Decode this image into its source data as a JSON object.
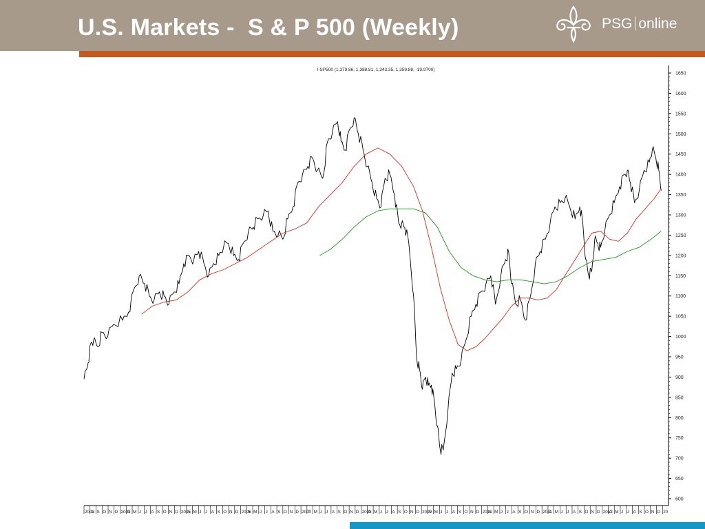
{
  "header": {
    "title": "U.S. Markets -  S & P 500 (Weekly)",
    "logo_text_1": "PSG",
    "logo_text_2": "online",
    "logo_icon": "fleur-de-lis-icon"
  },
  "colors": {
    "header_bg": "#a89a8a",
    "accent_orange": "#c5581c",
    "accent_blue": "#1497c6",
    "price_line": "#000000",
    "ma_red": "#e8281c",
    "ma_green": "#1a9a1a"
  },
  "chart_data": {
    "type": "line",
    "title": "I-SP500 (1,379.86, 1,388.81, 1,343.35, 1,359.88, -19.9700)",
    "ylim": [
      580,
      1670
    ],
    "y_ticks": [
      600,
      650,
      700,
      750,
      800,
      850,
      900,
      950,
      1000,
      1050,
      1100,
      1150,
      1200,
      1250,
      1300,
      1350,
      1400,
      1450,
      1500,
      1550,
      1600,
      1650
    ],
    "y_axis_position": "right",
    "grid": false,
    "x_range": [
      2003.15,
      2012.97
    ],
    "x_tick_labels": [
      "2003",
      "A",
      "S",
      "O",
      "N",
      "D",
      "2004",
      "A",
      "M",
      "J",
      "J",
      "A",
      "S",
      "O",
      "N",
      "D",
      "2005",
      "A",
      "M",
      "J",
      "J",
      "A",
      "S",
      "O",
      "N",
      "D",
      "2006",
      "A",
      "M",
      "J",
      "J",
      "A",
      "S",
      "O",
      "N",
      "D",
      "2007",
      "A",
      "M",
      "J",
      "J",
      "A",
      "S",
      "O",
      "N",
      "D",
      "2008",
      "A",
      "M",
      "J",
      "J",
      "A",
      "S",
      "O",
      "N",
      "D",
      "2009",
      "A",
      "M",
      "J",
      "J",
      "A",
      "S",
      "O",
      "N",
      "D",
      "2010",
      "A",
      "M",
      "J",
      "J",
      "A",
      "S",
      "O",
      "N",
      "D",
      "2011",
      "A",
      "M",
      "J",
      "J",
      "A",
      "S",
      "O",
      "N",
      "D",
      "2012",
      "A",
      "M",
      "J",
      "J",
      "A",
      "S",
      "O",
      "N",
      "D",
      "20"
    ],
    "series": [
      {
        "color": "#000000",
        "x": [
          2003.15,
          2003.22,
          2003.27,
          2003.31,
          2003.38,
          2003.45,
          2003.55,
          2003.65,
          2003.8,
          2003.9,
          2004.0,
          2004.08,
          2004.17,
          2004.25,
          2004.33,
          2004.42,
          2004.5,
          2004.58,
          2004.67,
          2004.75,
          2004.83,
          2004.92,
          2005.0,
          2005.08,
          2005.17,
          2005.25,
          2005.33,
          2005.42,
          2005.5,
          2005.58,
          2005.67,
          2005.75,
          2005.83,
          2005.92,
          2006.0,
          2006.08,
          2006.17,
          2006.25,
          2006.33,
          2006.42,
          2006.5,
          2006.58,
          2006.67,
          2006.75,
          2006.83,
          2006.92,
          2007.0,
          2007.08,
          2007.17,
          2007.25,
          2007.33,
          2007.42,
          2007.48,
          2007.55,
          2007.62,
          2007.7,
          2007.77,
          2007.85,
          2007.92,
          2008.0,
          2008.08,
          2008.15,
          2008.22,
          2008.3,
          2008.38,
          2008.45,
          2008.5,
          2008.55,
          2008.62,
          2008.7,
          2008.75,
          2008.8,
          2008.85,
          2008.9,
          2008.95,
          2009.0,
          2009.05,
          2009.1,
          2009.15,
          2009.2,
          2009.28,
          2009.35,
          2009.42,
          2009.5,
          2009.58,
          2009.67,
          2009.75,
          2009.83,
          2009.92,
          2010.0,
          2010.08,
          2010.17,
          2010.25,
          2010.3,
          2010.35,
          2010.42,
          2010.5,
          2010.58,
          2010.67,
          2010.75,
          2010.83,
          2010.92,
          2011.0,
          2011.08,
          2011.17,
          2011.25,
          2011.33,
          2011.42,
          2011.5,
          2011.55,
          2011.6,
          2011.65,
          2011.7,
          2011.75,
          2011.8,
          2011.85,
          2011.92,
          2012.0,
          2012.08,
          2012.17,
          2012.25,
          2012.3,
          2012.35,
          2012.42,
          2012.5,
          2012.58,
          2012.67,
          2012.72,
          2012.78,
          2012.83,
          2012.87
        ],
        "y": [
          895,
          935,
          985,
          990,
          975,
          1010,
          1000,
          1030,
          1040,
          1060,
          1120,
          1150,
          1130,
          1100,
          1090,
          1110,
          1100,
          1080,
          1110,
          1130,
          1180,
          1200,
          1190,
          1210,
          1180,
          1150,
          1180,
          1200,
          1220,
          1230,
          1200,
          1190,
          1230,
          1260,
          1270,
          1290,
          1300,
          1310,
          1260,
          1250,
          1240,
          1290,
          1320,
          1380,
          1400,
          1420,
          1440,
          1410,
          1390,
          1480,
          1500,
          1530,
          1480,
          1460,
          1510,
          1540,
          1500,
          1460,
          1420,
          1380,
          1340,
          1320,
          1390,
          1400,
          1350,
          1280,
          1280,
          1270,
          1230,
          1100,
          950,
          920,
          870,
          900,
          880,
          880,
          840,
          780,
          720,
          720,
          820,
          910,
          920,
          940,
          990,
          1050,
          1080,
          1110,
          1130,
          1150,
          1080,
          1150,
          1190,
          1210,
          1130,
          1080,
          1090,
          1040,
          1100,
          1180,
          1210,
          1240,
          1280,
          1320,
          1330,
          1340,
          1320,
          1290,
          1320,
          1280,
          1190,
          1150,
          1160,
          1240,
          1230,
          1220,
          1260,
          1300,
          1330,
          1370,
          1400,
          1410,
          1380,
          1330,
          1360,
          1410,
          1430,
          1460,
          1440,
          1410,
          1360
        ]
      },
      {
        "color": "#e8281c",
        "x": [
          2004.12,
          2004.3,
          2004.5,
          2004.7,
          2004.9,
          2005.1,
          2005.3,
          2005.5,
          2005.7,
          2005.9,
          2006.1,
          2006.3,
          2006.5,
          2006.7,
          2006.9,
          2007.1,
          2007.3,
          2007.5,
          2007.7,
          2007.9,
          2008.1,
          2008.3,
          2008.5,
          2008.7,
          2008.85,
          2009.0,
          2009.15,
          2009.3,
          2009.45,
          2009.6,
          2009.75,
          2009.9,
          2010.05,
          2010.2,
          2010.35,
          2010.5,
          2010.65,
          2010.8,
          2010.95,
          2011.1,
          2011.25,
          2011.4,
          2011.55,
          2011.7,
          2011.85,
          2012.0,
          2012.15,
          2012.3,
          2012.45,
          2012.6,
          2012.75,
          2012.87
        ],
        "y": [
          1055,
          1075,
          1085,
          1090,
          1110,
          1140,
          1155,
          1165,
          1180,
          1195,
          1215,
          1235,
          1255,
          1265,
          1280,
          1320,
          1350,
          1380,
          1420,
          1450,
          1465,
          1450,
          1420,
          1370,
          1310,
          1220,
          1120,
          1040,
          980,
          965,
          975,
          995,
          1020,
          1045,
          1075,
          1095,
          1095,
          1090,
          1095,
          1115,
          1150,
          1185,
          1220,
          1255,
          1260,
          1240,
          1235,
          1255,
          1290,
          1315,
          1340,
          1365
        ]
      },
      {
        "color": "#1a9a1a",
        "x": [
          2007.12,
          2007.3,
          2007.5,
          2007.7,
          2007.9,
          2008.1,
          2008.3,
          2008.5,
          2008.7,
          2008.9,
          2009.1,
          2009.3,
          2009.5,
          2009.7,
          2009.9,
          2010.1,
          2010.3,
          2010.5,
          2010.7,
          2010.9,
          2011.1,
          2011.3,
          2011.5,
          2011.7,
          2011.9,
          2012.1,
          2012.3,
          2012.5,
          2012.7,
          2012.87
        ],
        "y": [
          1200,
          1215,
          1240,
          1270,
          1295,
          1310,
          1315,
          1315,
          1315,
          1305,
          1270,
          1210,
          1170,
          1150,
          1140,
          1135,
          1140,
          1140,
          1135,
          1130,
          1135,
          1150,
          1170,
          1185,
          1190,
          1195,
          1210,
          1220,
          1240,
          1260
        ]
      }
    ]
  }
}
